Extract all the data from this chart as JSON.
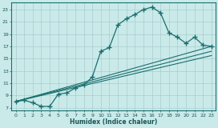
{
  "xlabel": "Humidex (Indice chaleur)",
  "background_color": "#caeaea",
  "grid_color": "#aacccc",
  "line_color": "#1a6e6e",
  "xlim": [
    -0.5,
    23.5
  ],
  "ylim": [
    6.5,
    24.2
  ],
  "yticks": [
    7,
    9,
    11,
    13,
    15,
    17,
    19,
    21,
    23
  ],
  "xticks": [
    0,
    1,
    2,
    3,
    4,
    5,
    6,
    7,
    8,
    9,
    10,
    11,
    12,
    13,
    14,
    15,
    16,
    17,
    18,
    19,
    20,
    21,
    22,
    23
  ],
  "curve1_x": [
    0,
    1,
    2,
    3,
    4,
    5,
    6,
    7,
    8,
    9,
    10,
    11,
    12,
    13,
    14,
    15,
    16,
    17,
    18,
    19,
    20,
    21,
    22,
    23
  ],
  "curve1_y": [
    8.0,
    8.2,
    7.8,
    7.2,
    7.2,
    9.2,
    9.4,
    10.2,
    10.7,
    12.0,
    16.2,
    16.8,
    20.5,
    21.5,
    22.2,
    23.0,
    23.4,
    22.5,
    19.2,
    18.5,
    17.5,
    18.5,
    17.2,
    17.0
  ],
  "line1_x": [
    0,
    23
  ],
  "line1_y": [
    8.0,
    17.0
  ],
  "line2_x": [
    0,
    23
  ],
  "line2_y": [
    8.0,
    16.2
  ],
  "line3_x": [
    0,
    23
  ],
  "line3_y": [
    8.0,
    15.5
  ]
}
